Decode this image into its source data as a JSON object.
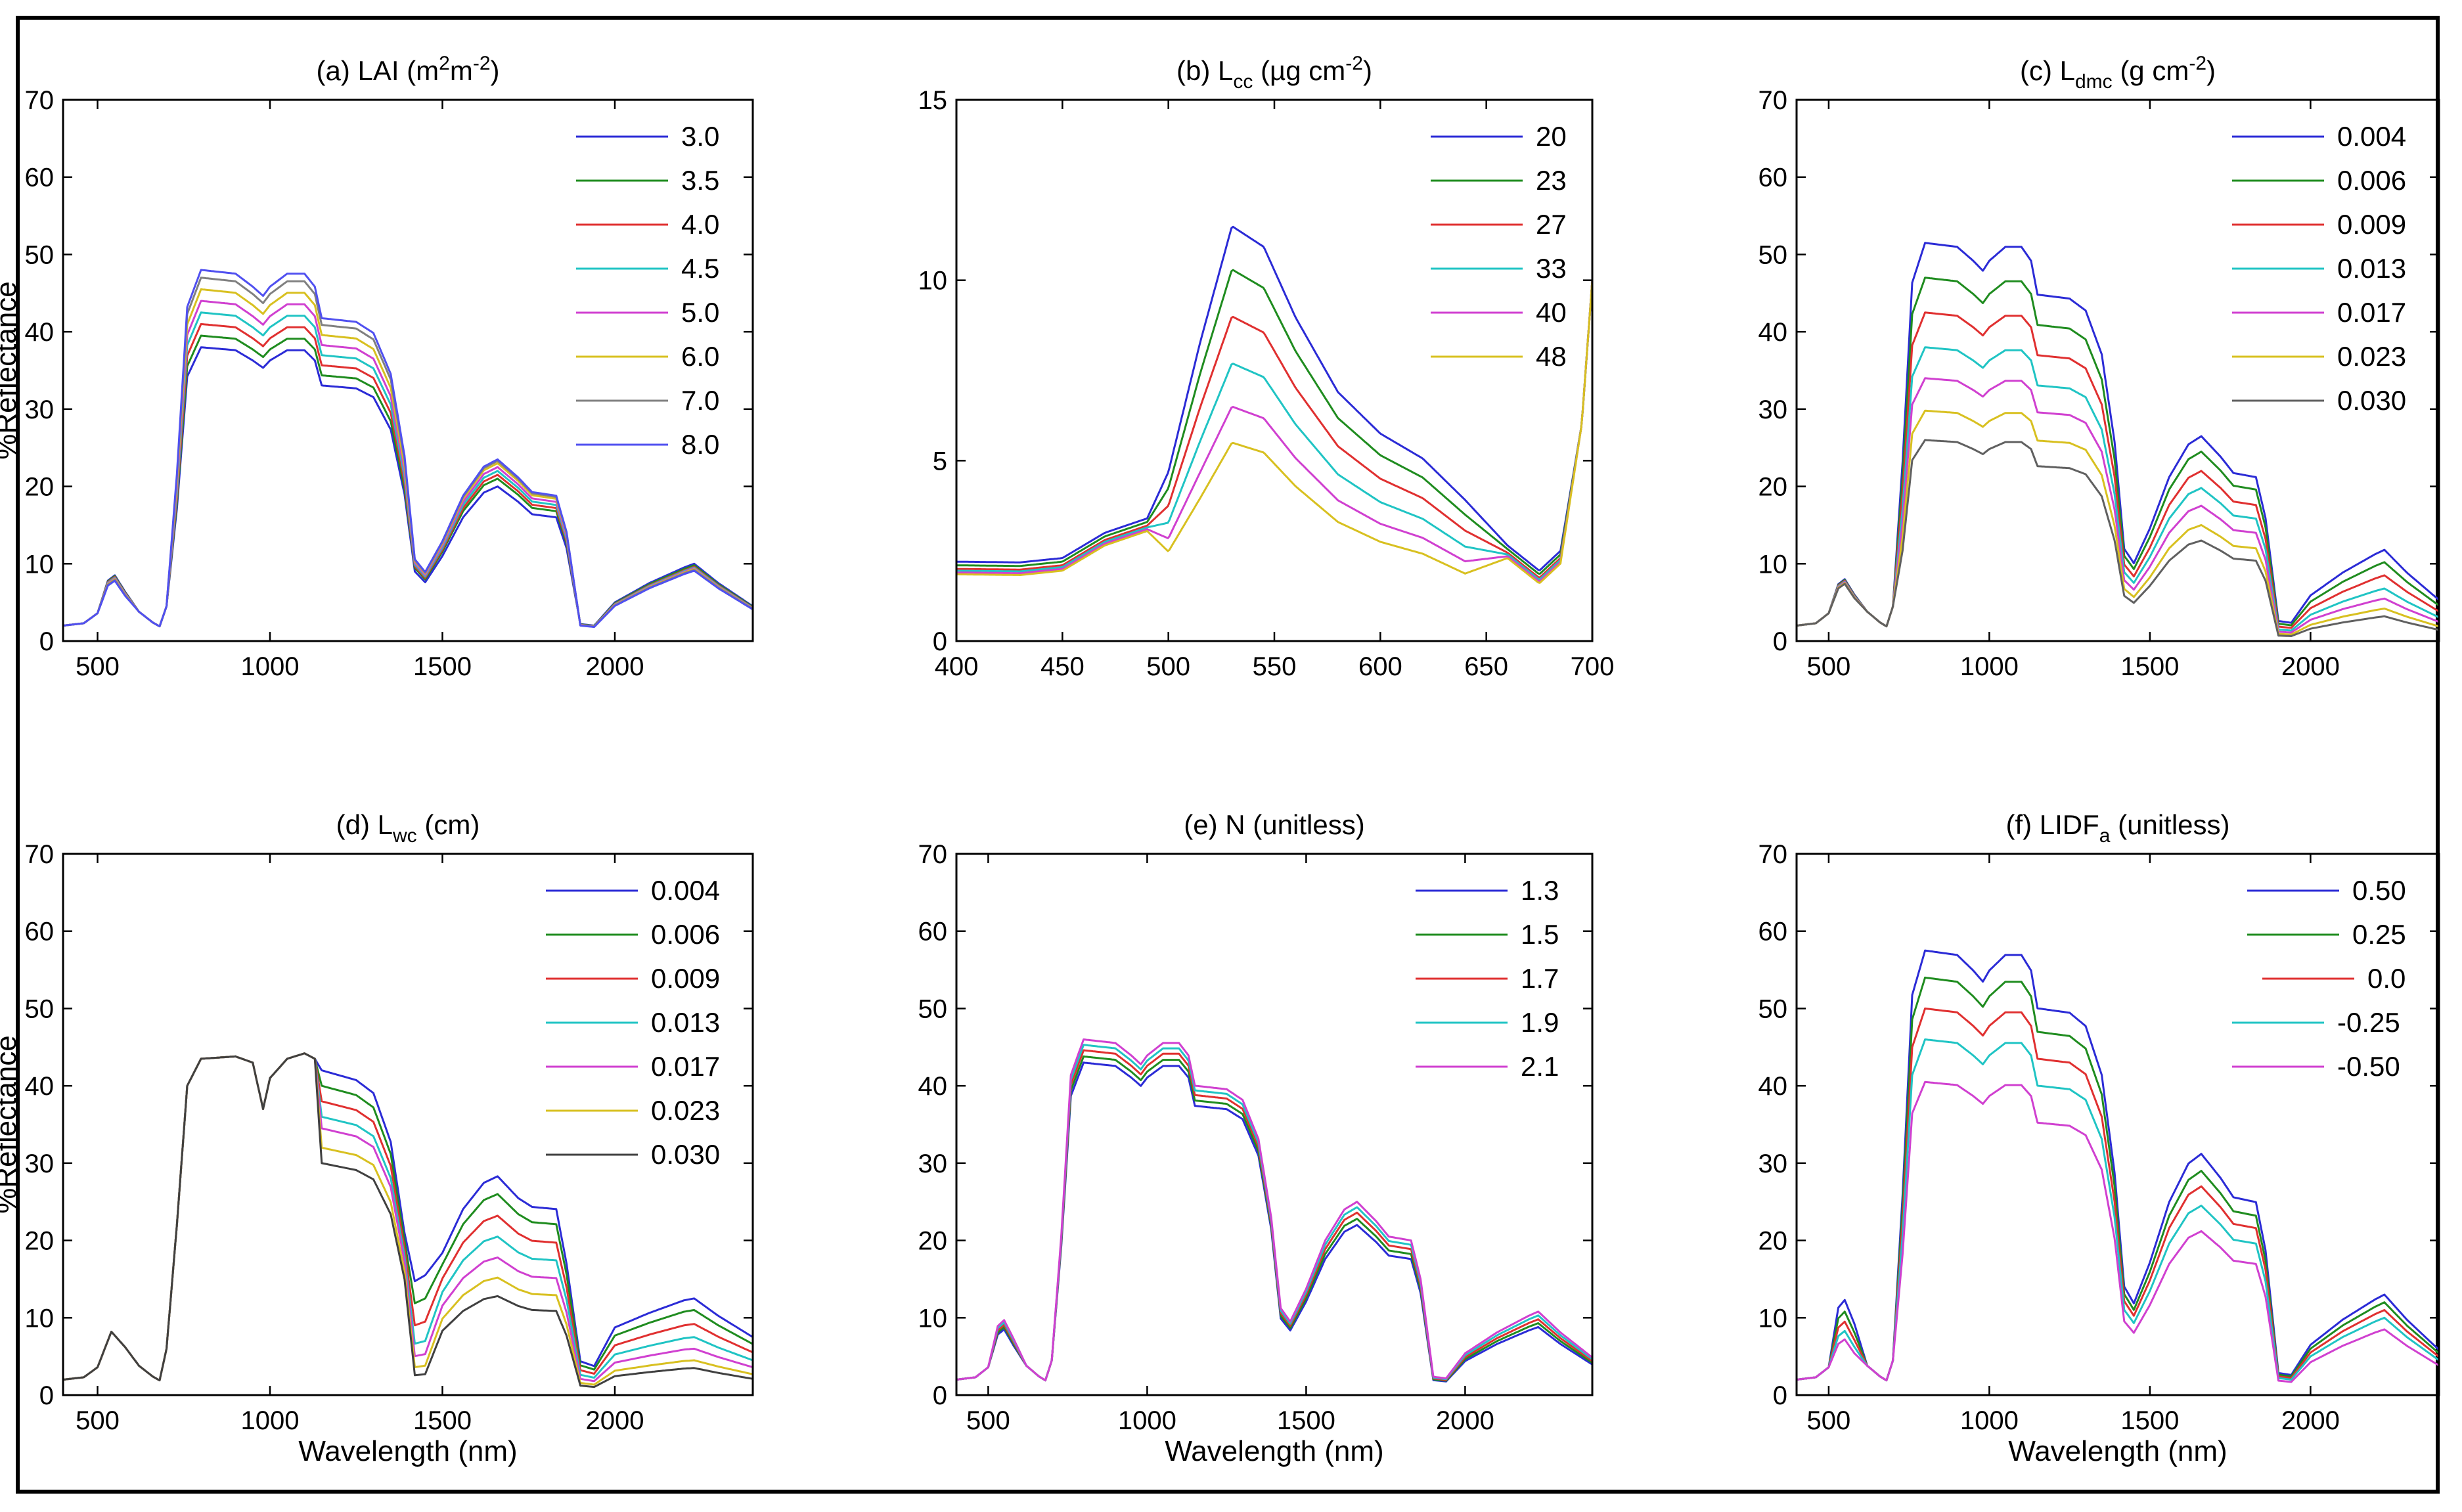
{
  "chart_data": [
    {
      "id": "a",
      "type": "line",
      "title": "(a) LAI (m²m⁻²)",
      "title_parts": {
        "prefix": "(a) LAI (m",
        "sup1": "2",
        "mid": "m",
        "sup2": "-2",
        "suffix": ")"
      },
      "xlabel": "",
      "ylabel": "%Reflectance",
      "xlim": [
        400,
        2400
      ],
      "ylim": [
        0,
        70
      ],
      "xticks": [
        500,
        1000,
        1500,
        2000
      ],
      "yticks": [
        0,
        10,
        20,
        30,
        40,
        50,
        60,
        70
      ],
      "legend": "top-right",
      "profile": "canopy_full",
      "series": [
        {
          "name": "3.0",
          "color": "#2b2bd6",
          "params": {
            "nir": 38,
            "vis": 8.5,
            "m1": 20,
            "m2": 10
          }
        },
        {
          "name": "3.5",
          "color": "#1f8c1f",
          "params": {
            "nir": 39.5,
            "vis": 8.4,
            "m1": 21,
            "m2": 9.8
          }
        },
        {
          "name": "4.0",
          "color": "#e03030",
          "params": {
            "nir": 41,
            "vis": 8.3,
            "m1": 21.5,
            "m2": 9.6
          }
        },
        {
          "name": "4.5",
          "color": "#20c4c4",
          "params": {
            "nir": 42.5,
            "vis": 8.2,
            "m1": 22,
            "m2": 9.5
          }
        },
        {
          "name": "5.0",
          "color": "#d040d0",
          "params": {
            "nir": 44,
            "vis": 8.1,
            "m1": 22.5,
            "m2": 9.4
          }
        },
        {
          "name": "6.0",
          "color": "#d8c020",
          "params": {
            "nir": 45.5,
            "vis": 8.0,
            "m1": 23,
            "m2": 9.3
          }
        },
        {
          "name": "7.0",
          "color": "#808080",
          "params": {
            "nir": 47,
            "vis": 7.9,
            "m1": 23.3,
            "m2": 9.2
          }
        },
        {
          "name": "8.0",
          "color": "#5050f0",
          "params": {
            "nir": 48,
            "vis": 7.8,
            "m1": 23.5,
            "m2": 9.1
          }
        }
      ]
    },
    {
      "id": "b",
      "type": "line",
      "title": "(b) L_cc (µg cm⁻²)",
      "title_parts": {
        "prefix": "(b) L",
        "sub": "cc",
        "mid": " (µg cm",
        "sup": "-2",
        "suffix": ")"
      },
      "xlabel": "",
      "ylabel": "",
      "xlim": [
        400,
        700
      ],
      "ylim": [
        0,
        15
      ],
      "xticks": [
        400,
        450,
        500,
        550,
        600,
        650,
        700
      ],
      "yticks": [
        0,
        5,
        10,
        15
      ],
      "legend": "top-right",
      "profile": "visible",
      "series": [
        {
          "name": "20",
          "color": "#2b2bd6",
          "params": {
            "peak": 11.5,
            "base": 2.2
          }
        },
        {
          "name": "23",
          "color": "#1f8c1f",
          "params": {
            "peak": 10.3,
            "base": 2.1
          }
        },
        {
          "name": "27",
          "color": "#e03030",
          "params": {
            "peak": 9.0,
            "base": 2.0
          }
        },
        {
          "name": "33",
          "color": "#20c4c4",
          "params": {
            "peak": 7.7,
            "base": 1.95
          }
        },
        {
          "name": "40",
          "color": "#d040d0",
          "params": {
            "peak": 6.5,
            "base": 1.9
          }
        },
        {
          "name": "48",
          "color": "#d8c020",
          "params": {
            "peak": 5.5,
            "base": 1.85
          }
        }
      ]
    },
    {
      "id": "c",
      "type": "line",
      "title": "(c) L_dmc (g cm⁻²)",
      "title_parts": {
        "prefix": "(c) L",
        "sub": "dmc",
        "mid": " (g cm",
        "sup": "-2",
        "suffix": ")"
      },
      "xlabel": "",
      "ylabel": "",
      "xlim": [
        400,
        2400
      ],
      "ylim": [
        0,
        70
      ],
      "xticks": [
        500,
        1000,
        1500,
        2000
      ],
      "yticks": [
        0,
        10,
        20,
        30,
        40,
        50,
        60,
        70
      ],
      "legend": "top-right",
      "profile": "canopy_full",
      "series": [
        {
          "name": "0.004",
          "color": "#2b2bd6",
          "params": {
            "nir": 51.5,
            "vis": 8.0,
            "m1": 26.5,
            "m2": 11.8
          }
        },
        {
          "name": "0.006",
          "color": "#1f8c1f",
          "params": {
            "nir": 47,
            "vis": 7.9,
            "m1": 24.5,
            "m2": 10.2
          }
        },
        {
          "name": "0.009",
          "color": "#e03030",
          "params": {
            "nir": 42.5,
            "vis": 7.8,
            "m1": 22,
            "m2": 8.5
          }
        },
        {
          "name": "0.013",
          "color": "#20c4c4",
          "params": {
            "nir": 38,
            "vis": 7.7,
            "m1": 19.8,
            "m2": 6.8
          }
        },
        {
          "name": "0.017",
          "color": "#d040d0",
          "params": {
            "nir": 34,
            "vis": 7.6,
            "m1": 17.5,
            "m2": 5.5
          }
        },
        {
          "name": "0.023",
          "color": "#d8c020",
          "params": {
            "nir": 29.8,
            "vis": 7.5,
            "m1": 15,
            "m2": 4.2
          }
        },
        {
          "name": "0.030",
          "color": "#606060",
          "params": {
            "nir": 26,
            "vis": 7.4,
            "m1": 13,
            "m2": 3.2
          }
        }
      ]
    },
    {
      "id": "d",
      "type": "line",
      "title": "(d) L_wc (cm)",
      "title_parts": {
        "prefix": "(d) L",
        "sub": "wc",
        "mid": " (cm)"
      },
      "xlabel": "Wavelength (nm)",
      "ylabel": "%Reflectance",
      "xlim": [
        400,
        2400
      ],
      "ylim": [
        0,
        70
      ],
      "xticks": [
        500,
        1000,
        1500,
        2000
      ],
      "yticks": [
        0,
        10,
        20,
        30,
        40,
        50,
        60,
        70
      ],
      "legend": "top-right",
      "profile": "water",
      "series": [
        {
          "name": "0.004",
          "color": "#2b2bd6",
          "params": {
            "shoulder": 42,
            "m1": 28.3,
            "m2": 12.5,
            "dip": 15.5
          }
        },
        {
          "name": "0.006",
          "color": "#1f8c1f",
          "params": {
            "shoulder": 40,
            "m1": 26,
            "m2": 11,
            "dip": 12.5
          }
        },
        {
          "name": "0.009",
          "color": "#e03030",
          "params": {
            "shoulder": 38,
            "m1": 23.2,
            "m2": 9.2,
            "dip": 9.5
          }
        },
        {
          "name": "0.013",
          "color": "#20c4c4",
          "params": {
            "shoulder": 36,
            "m1": 20.5,
            "m2": 7.5,
            "dip": 7.0
          }
        },
        {
          "name": "0.017",
          "color": "#d040d0",
          "params": {
            "shoulder": 34.5,
            "m1": 17.8,
            "m2": 6.0,
            "dip": 5.3
          }
        },
        {
          "name": "0.023",
          "color": "#d8c020",
          "params": {
            "shoulder": 32,
            "m1": 15.2,
            "m2": 4.5,
            "dip": 3.8
          }
        },
        {
          "name": "0.030",
          "color": "#404040",
          "params": {
            "shoulder": 30,
            "m1": 12.8,
            "m2": 3.5,
            "dip": 2.7
          }
        }
      ]
    },
    {
      "id": "e",
      "type": "line",
      "title": "(e) N (unitless)",
      "title_parts": {
        "prefix": "(e) N (unitless)"
      },
      "xlabel": "Wavelength (nm)",
      "ylabel": "",
      "xlim": [
        400,
        2400
      ],
      "ylim": [
        0,
        70
      ],
      "xticks": [
        500,
        1000,
        1500,
        2000
      ],
      "yticks": [
        0,
        10,
        20,
        30,
        40,
        50,
        60,
        70
      ],
      "legend": "top-right",
      "profile": "canopy_full",
      "series": [
        {
          "name": "1.3",
          "color": "#2b2bd6",
          "params": {
            "nir": 43,
            "vis": 8.5,
            "m1": 22,
            "m2": 8.8
          }
        },
        {
          "name": "1.5",
          "color": "#1f8c1f",
          "params": {
            "nir": 43.8,
            "vis": 8.8,
            "m1": 22.8,
            "m2": 9.3
          }
        },
        {
          "name": "1.7",
          "color": "#e03030",
          "params": {
            "nir": 44.6,
            "vis": 9.1,
            "m1": 23.6,
            "m2": 9.8
          }
        },
        {
          "name": "1.9",
          "color": "#20c4c4",
          "params": {
            "nir": 45.3,
            "vis": 9.4,
            "m1": 24.3,
            "m2": 10.3
          }
        },
        {
          "name": "2.1",
          "color": "#d040d0",
          "params": {
            "nir": 46,
            "vis": 9.7,
            "m1": 25,
            "m2": 10.8
          }
        }
      ]
    },
    {
      "id": "f",
      "type": "line",
      "title": "(f) LIDF_a (unitless)",
      "title_parts": {
        "prefix": "(f) LIDF",
        "sub": "a",
        "mid": " (unitless)"
      },
      "xlabel": "Wavelength (nm)",
      "ylabel": "",
      "xlim": [
        400,
        2400
      ],
      "ylim": [
        0,
        70
      ],
      "xticks": [
        500,
        1000,
        1500,
        2000
      ],
      "yticks": [
        0,
        10,
        20,
        30,
        40,
        50,
        60,
        70
      ],
      "legend": "top-right",
      "profile": "canopy_full",
      "series": [
        {
          "name": "0.50",
          "color": "#2b2bd6",
          "params": {
            "nir": 57.5,
            "vis": 12.3,
            "m1": 31.2,
            "m2": 13
          }
        },
        {
          "name": "0.25",
          "color": "#1f8c1f",
          "params": {
            "nir": 54,
            "vis": 10.8,
            "m1": 29,
            "m2": 12
          }
        },
        {
          "name": "0.0",
          "color": "#e03030",
          "params": {
            "nir": 50,
            "vis": 9.5,
            "m1": 27,
            "m2": 11
          }
        },
        {
          "name": "-0.25",
          "color": "#20c4c4",
          "params": {
            "nir": 46,
            "vis": 8.3,
            "m1": 24.5,
            "m2": 10
          }
        },
        {
          "name": "-0.50",
          "color": "#d040d0",
          "params": {
            "nir": 40.5,
            "vis": 7.2,
            "m1": 21.2,
            "m2": 8.5
          }
        }
      ]
    }
  ]
}
